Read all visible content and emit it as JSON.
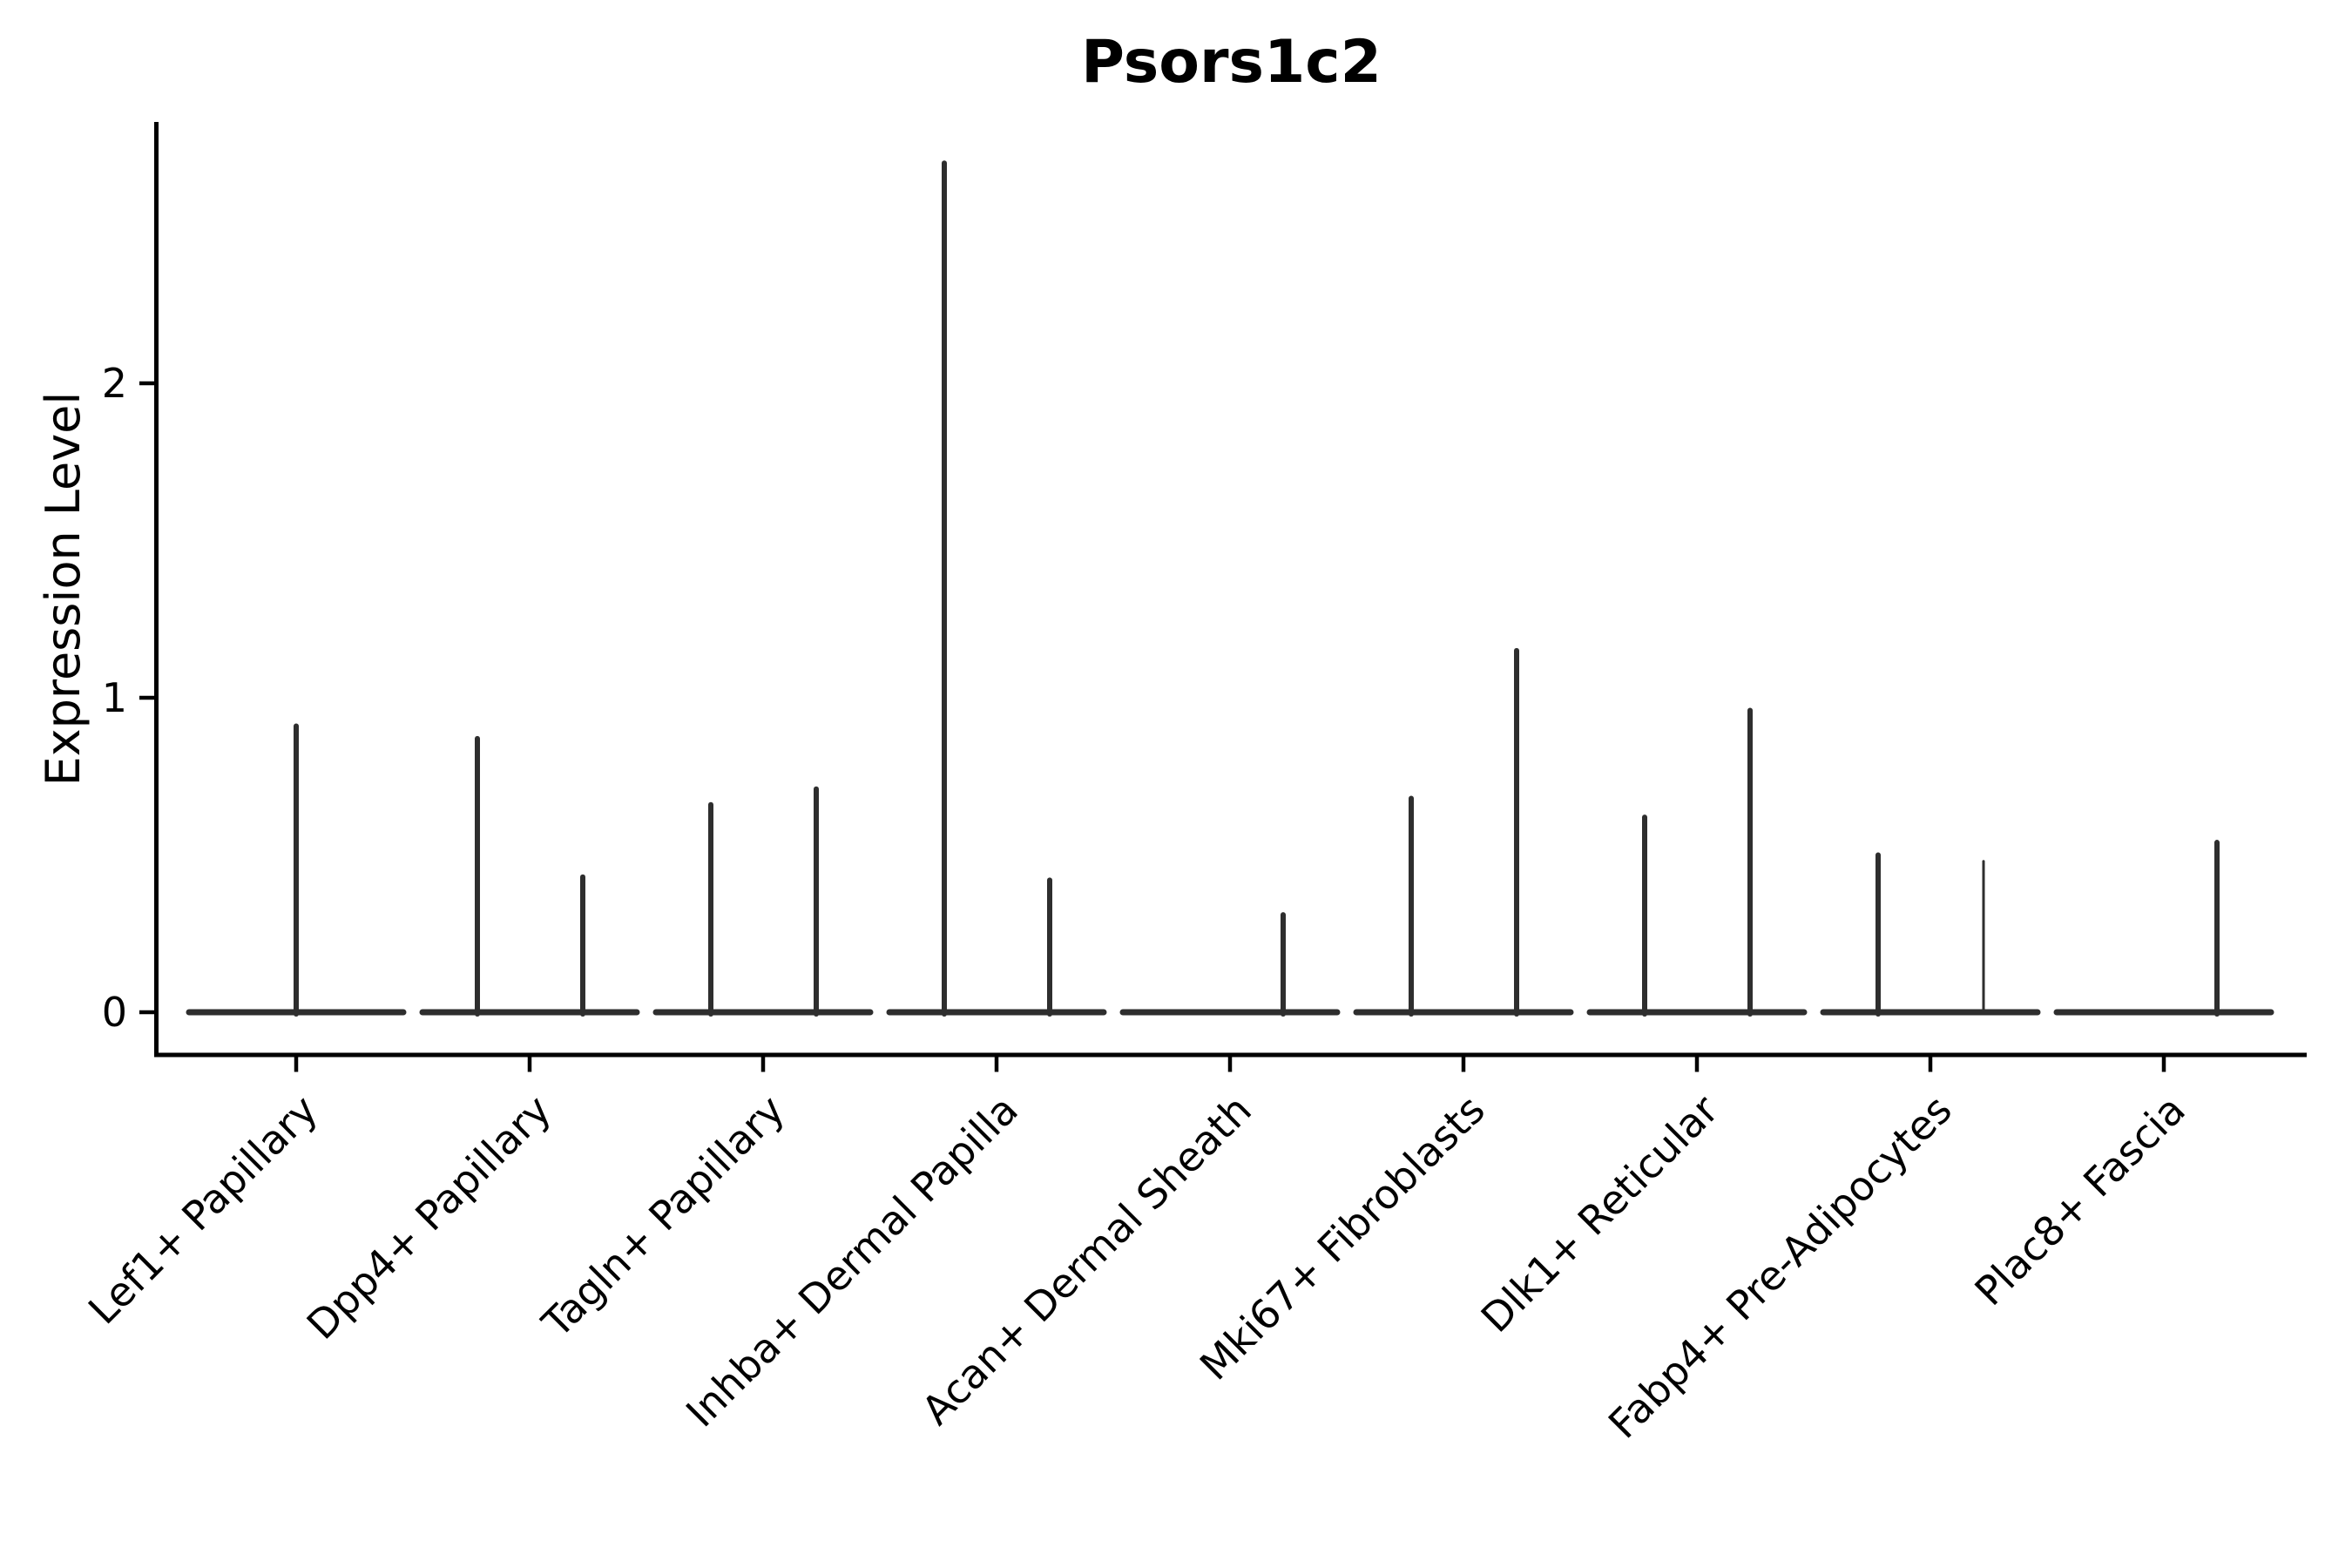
{
  "chart_data": {
    "type": "violin",
    "title": "Psors1c2",
    "ylabel": "Expression Level",
    "xlabel": "",
    "yticks": [
      0,
      1,
      2
    ],
    "ylim": [
      -0.14,
      2.83
    ],
    "grid": false,
    "legend": null,
    "categories": [
      "Lef1+ Papillary",
      "Dpp4+ Papillary",
      "Tagln+ Papillary",
      "Inhba+ Dermal Papilla",
      "Acan+ Dermal Sheath",
      "Mki67+ Fibroblasts",
      "Dlk1+ Reticular",
      "Fabp4+ Pre-Adipocytes",
      "Plac8+ Fascia"
    ],
    "groups": [
      {
        "category": "Lef1+ Papillary",
        "violins": [
          {
            "slot": "center",
            "max_expression": 0.91
          }
        ]
      },
      {
        "category": "Dpp4+ Papillary",
        "violins": [
          {
            "slot": "left",
            "max_expression": 0.87
          },
          {
            "slot": "right",
            "max_expression": 0.43
          }
        ]
      },
      {
        "category": "Tagln+ Papillary",
        "violins": [
          {
            "slot": "left",
            "max_expression": 0.66
          },
          {
            "slot": "right",
            "max_expression": 0.71
          }
        ]
      },
      {
        "category": "Inhba+ Dermal Papilla",
        "violins": [
          {
            "slot": "left",
            "max_expression": 2.7
          },
          {
            "slot": "right",
            "max_expression": 0.42
          }
        ]
      },
      {
        "category": "Acan+ Dermal Sheath",
        "violins": [
          {
            "slot": "right",
            "max_expression": 0.31
          }
        ]
      },
      {
        "category": "Mki67+ Fibroblasts",
        "violins": [
          {
            "slot": "left",
            "max_expression": 0.68
          },
          {
            "slot": "right",
            "max_expression": 1.15
          }
        ]
      },
      {
        "category": "Dlk1+ Reticular",
        "violins": [
          {
            "slot": "left",
            "max_expression": 0.62
          },
          {
            "slot": "right",
            "max_expression": 0.96
          }
        ]
      },
      {
        "category": "Fabp4+ Pre-Adipocytes",
        "violins": [
          {
            "slot": "left",
            "max_expression": 0.5
          },
          {
            "slot": "right",
            "max_expression": 0.48,
            "thin": true
          }
        ]
      },
      {
        "category": "Plac8+ Fascia",
        "violins": [
          {
            "slot": "right",
            "max_expression": 0.54
          }
        ]
      }
    ],
    "colors": {
      "violin_line": "#2e2e2e",
      "axis": "#000000",
      "text": "#000000",
      "background": "#ffffff"
    }
  }
}
